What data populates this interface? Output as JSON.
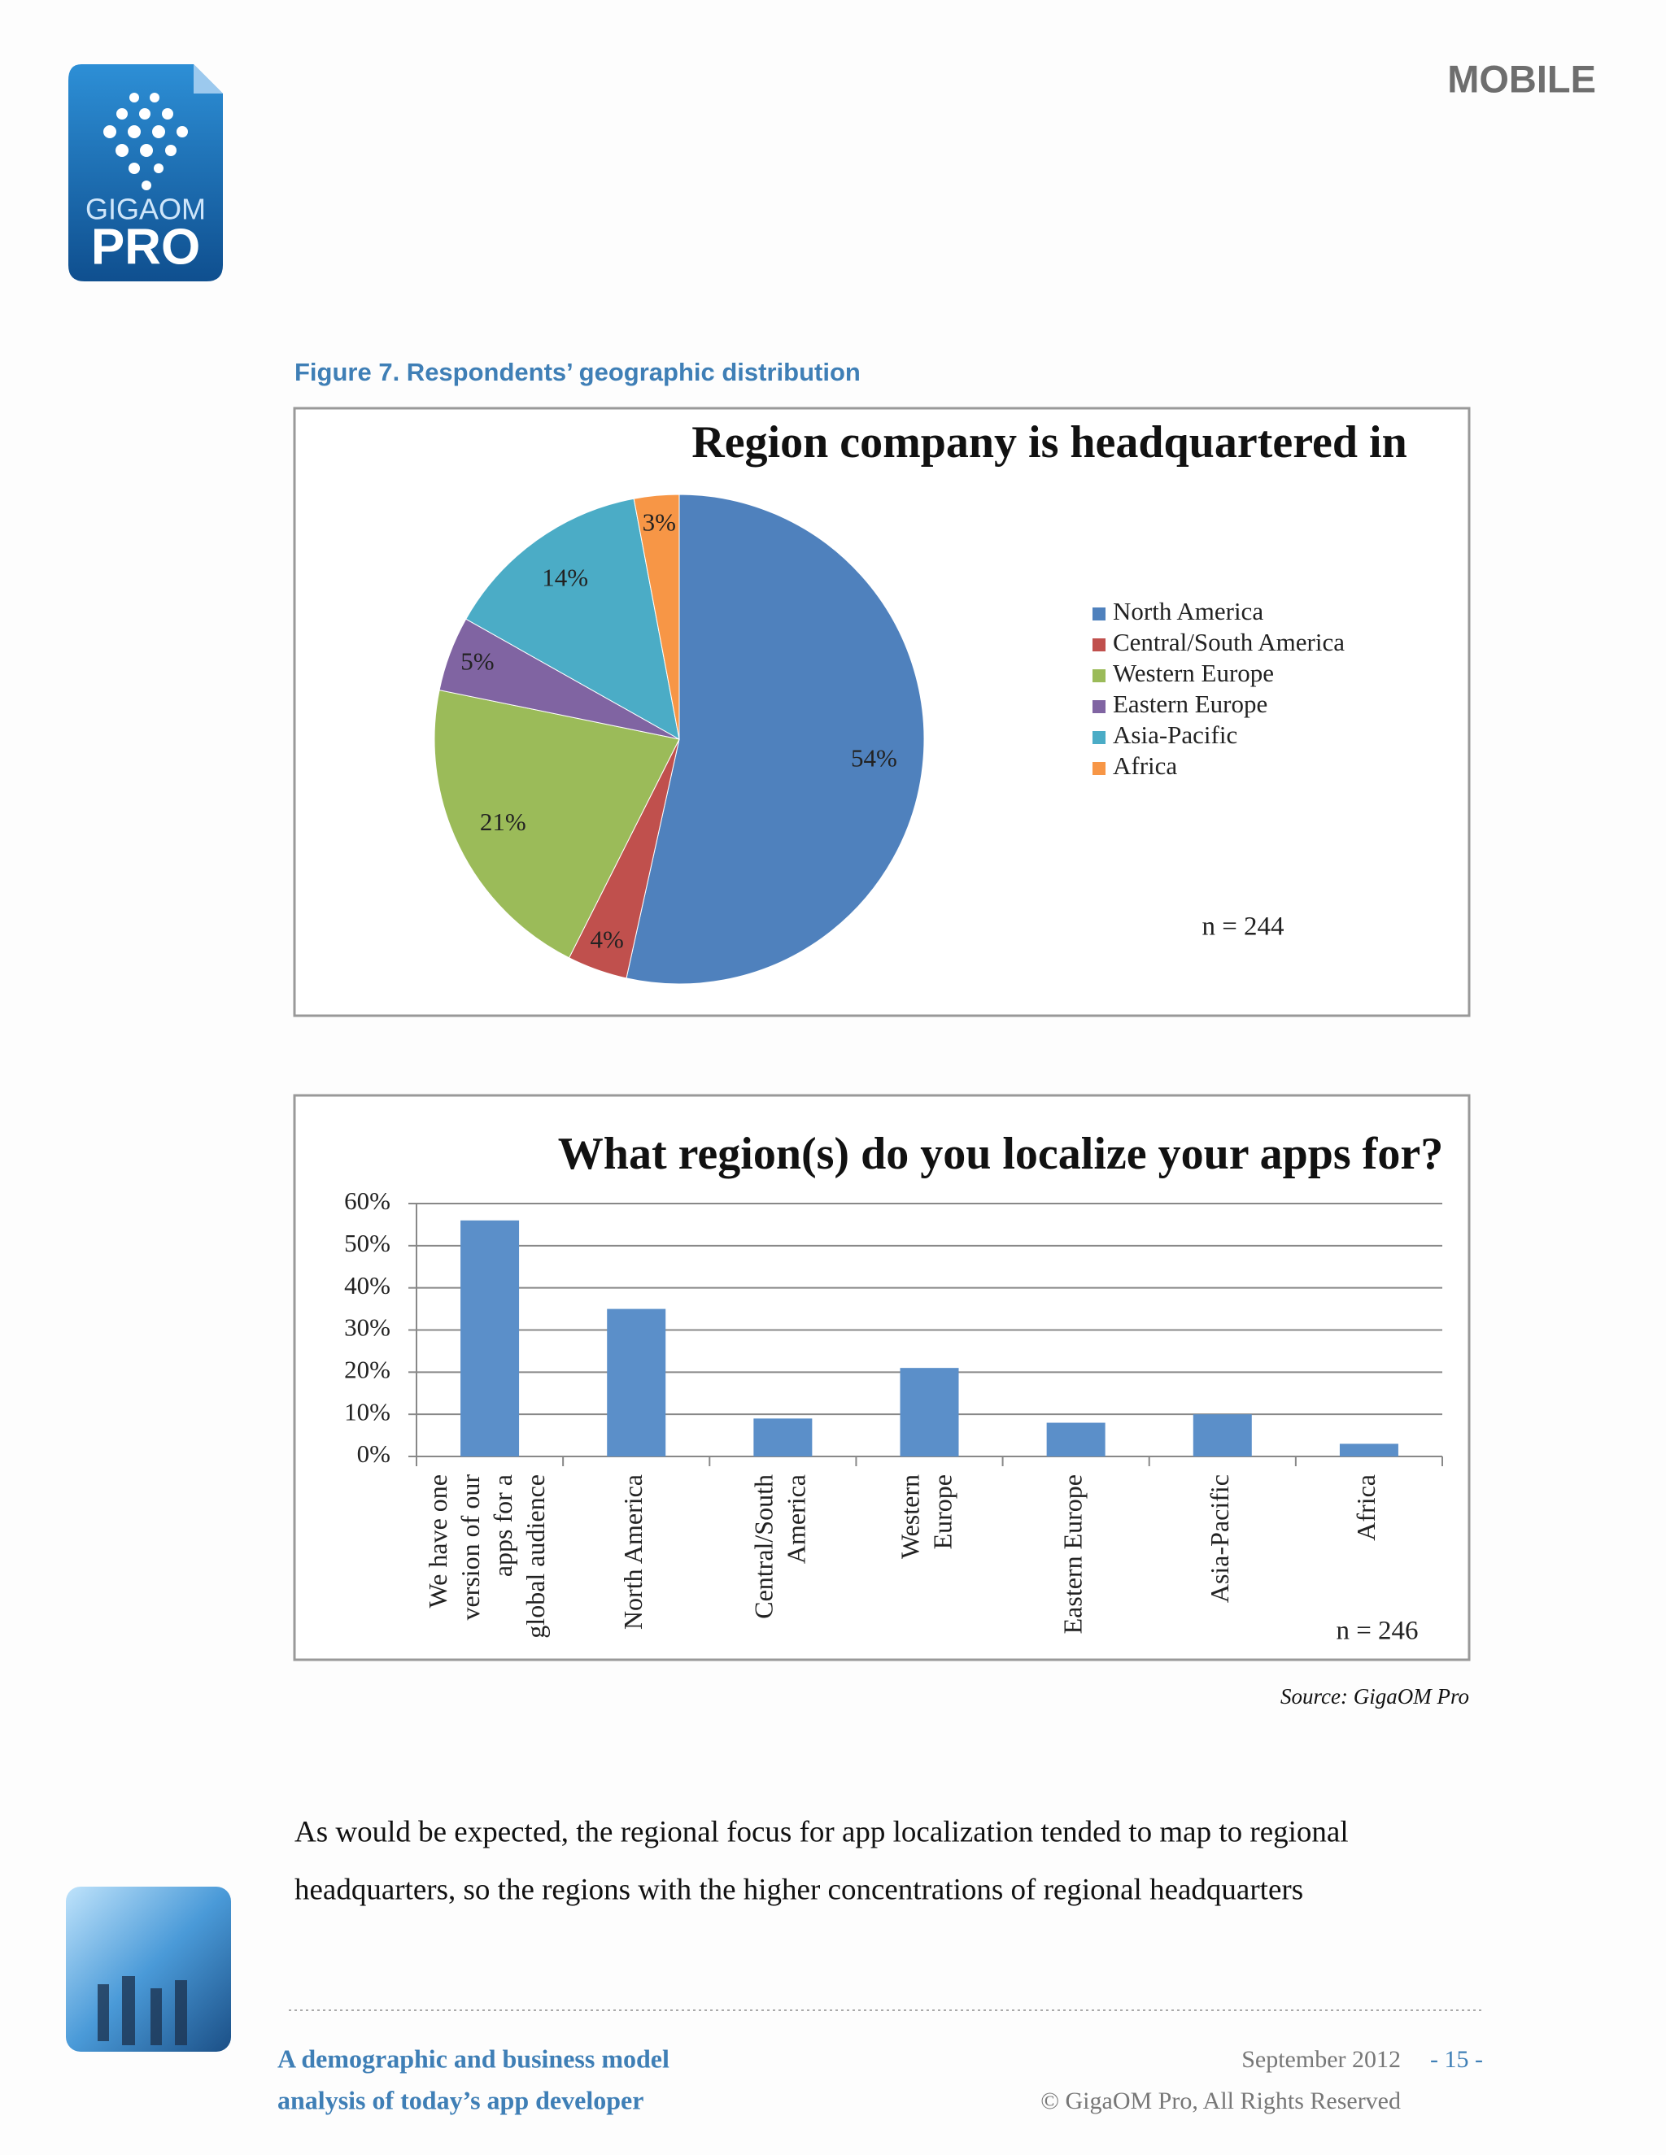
{
  "header": {
    "logo_top": "GIGAOM",
    "logo_bottom": "PRO",
    "section": "MOBILE"
  },
  "figure_caption": "Figure 7. Respondents’ geographic distribution",
  "chart_data": [
    {
      "type": "pie",
      "title": "Region company is headquartered in",
      "categories": [
        "North America",
        "Central/South America",
        "Western Europe",
        "Eastern Europe",
        "Asia-Pacific",
        "Africa"
      ],
      "values": [
        54,
        4,
        21,
        5,
        14,
        3
      ],
      "value_labels": [
        "54%",
        "4%",
        "21%",
        "5%",
        "14%",
        "3%"
      ],
      "colors": [
        "#4f81bd",
        "#c0504d",
        "#9bbb59",
        "#8064a2",
        "#4bacc6",
        "#f79646"
      ],
      "legend": "right",
      "annotation": "n = 244"
    },
    {
      "type": "bar",
      "title": "What region(s) do you localize your apps for?",
      "categories": [
        "We have one\nversion of our\napps for a\nglobal audience",
        "North America",
        "Central/South\nAmerica",
        "Western\nEurope",
        "Eastern Europe",
        "Asia-Pacific",
        "Africa"
      ],
      "values": [
        56,
        35,
        9,
        21,
        8,
        10,
        3
      ],
      "color": "#5b8fc9",
      "ylim": [
        0,
        60
      ],
      "yticks": [
        {
          "value": 0,
          "label": "0%"
        },
        {
          "value": 10,
          "label": "10%"
        },
        {
          "value": 20,
          "label": "20%"
        },
        {
          "value": 30,
          "label": "30%"
        },
        {
          "value": 40,
          "label": "40%"
        },
        {
          "value": 50,
          "label": "50%"
        },
        {
          "value": 60,
          "label": "60%"
        }
      ],
      "grid": true,
      "annotation": "n = 246"
    }
  ],
  "source": "Source: GigaOM Pro",
  "body": {
    "lines": [
      "As would be expected, the regional focus for app localization tended to map to regional",
      "headquarters, so the regions with the higher concentrations of regional headquarters"
    ]
  },
  "footer": {
    "title_lines": [
      "A demographic and business model",
      "analysis of today’s app developer"
    ],
    "date": "September 2012",
    "page": "- 15 -",
    "copyright": "© GigaOM Pro, All Rights Reserved"
  }
}
